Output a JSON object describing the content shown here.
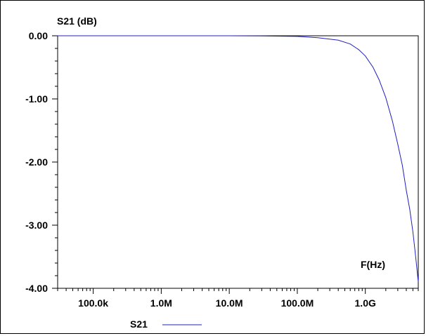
{
  "chart_data": {
    "type": "line",
    "title": "",
    "ylabel": "S21 (dB)",
    "xlabel": "F(Hz)",
    "xscale": "log",
    "xlim": [
      30000,
      6000000000
    ],
    "ylim": [
      -4.0,
      0.0
    ],
    "yticks": [
      {
        "value": 0.0,
        "label": "0.00"
      },
      {
        "value": -1.0,
        "label": "-1.00"
      },
      {
        "value": -2.0,
        "label": "-2.00"
      },
      {
        "value": -3.0,
        "label": "-3.00"
      },
      {
        "value": -4.0,
        "label": "-4.00"
      }
    ],
    "xticks": [
      {
        "value": 100000,
        "label": "100.0k"
      },
      {
        "value": 1000000,
        "label": "1.0M"
      },
      {
        "value": 10000000,
        "label": "10.0M"
      },
      {
        "value": 100000000,
        "label": "100.0M"
      },
      {
        "value": 1000000000,
        "label": "1.0G"
      }
    ],
    "grid": false,
    "legend": "bottom-center",
    "series": [
      {
        "name": "S21",
        "color": "#2020c0",
        "x": [
          30000,
          100000,
          1000000,
          10000000,
          30000000,
          100000000,
          200000000,
          400000000,
          600000000,
          800000000,
          1000000000,
          1300000000,
          1600000000,
          2000000000,
          2500000000,
          3000000000,
          3500000000,
          4000000000,
          4500000000,
          5000000000,
          5500000000,
          6000000000
        ],
        "y": [
          0.0,
          0.0,
          0.0,
          0.0,
          -0.003,
          -0.01,
          -0.03,
          -0.07,
          -0.13,
          -0.22,
          -0.32,
          -0.5,
          -0.7,
          -0.98,
          -1.35,
          -1.72,
          -2.05,
          -2.45,
          -2.75,
          -3.1,
          -3.5,
          -3.9
        ]
      }
    ]
  }
}
